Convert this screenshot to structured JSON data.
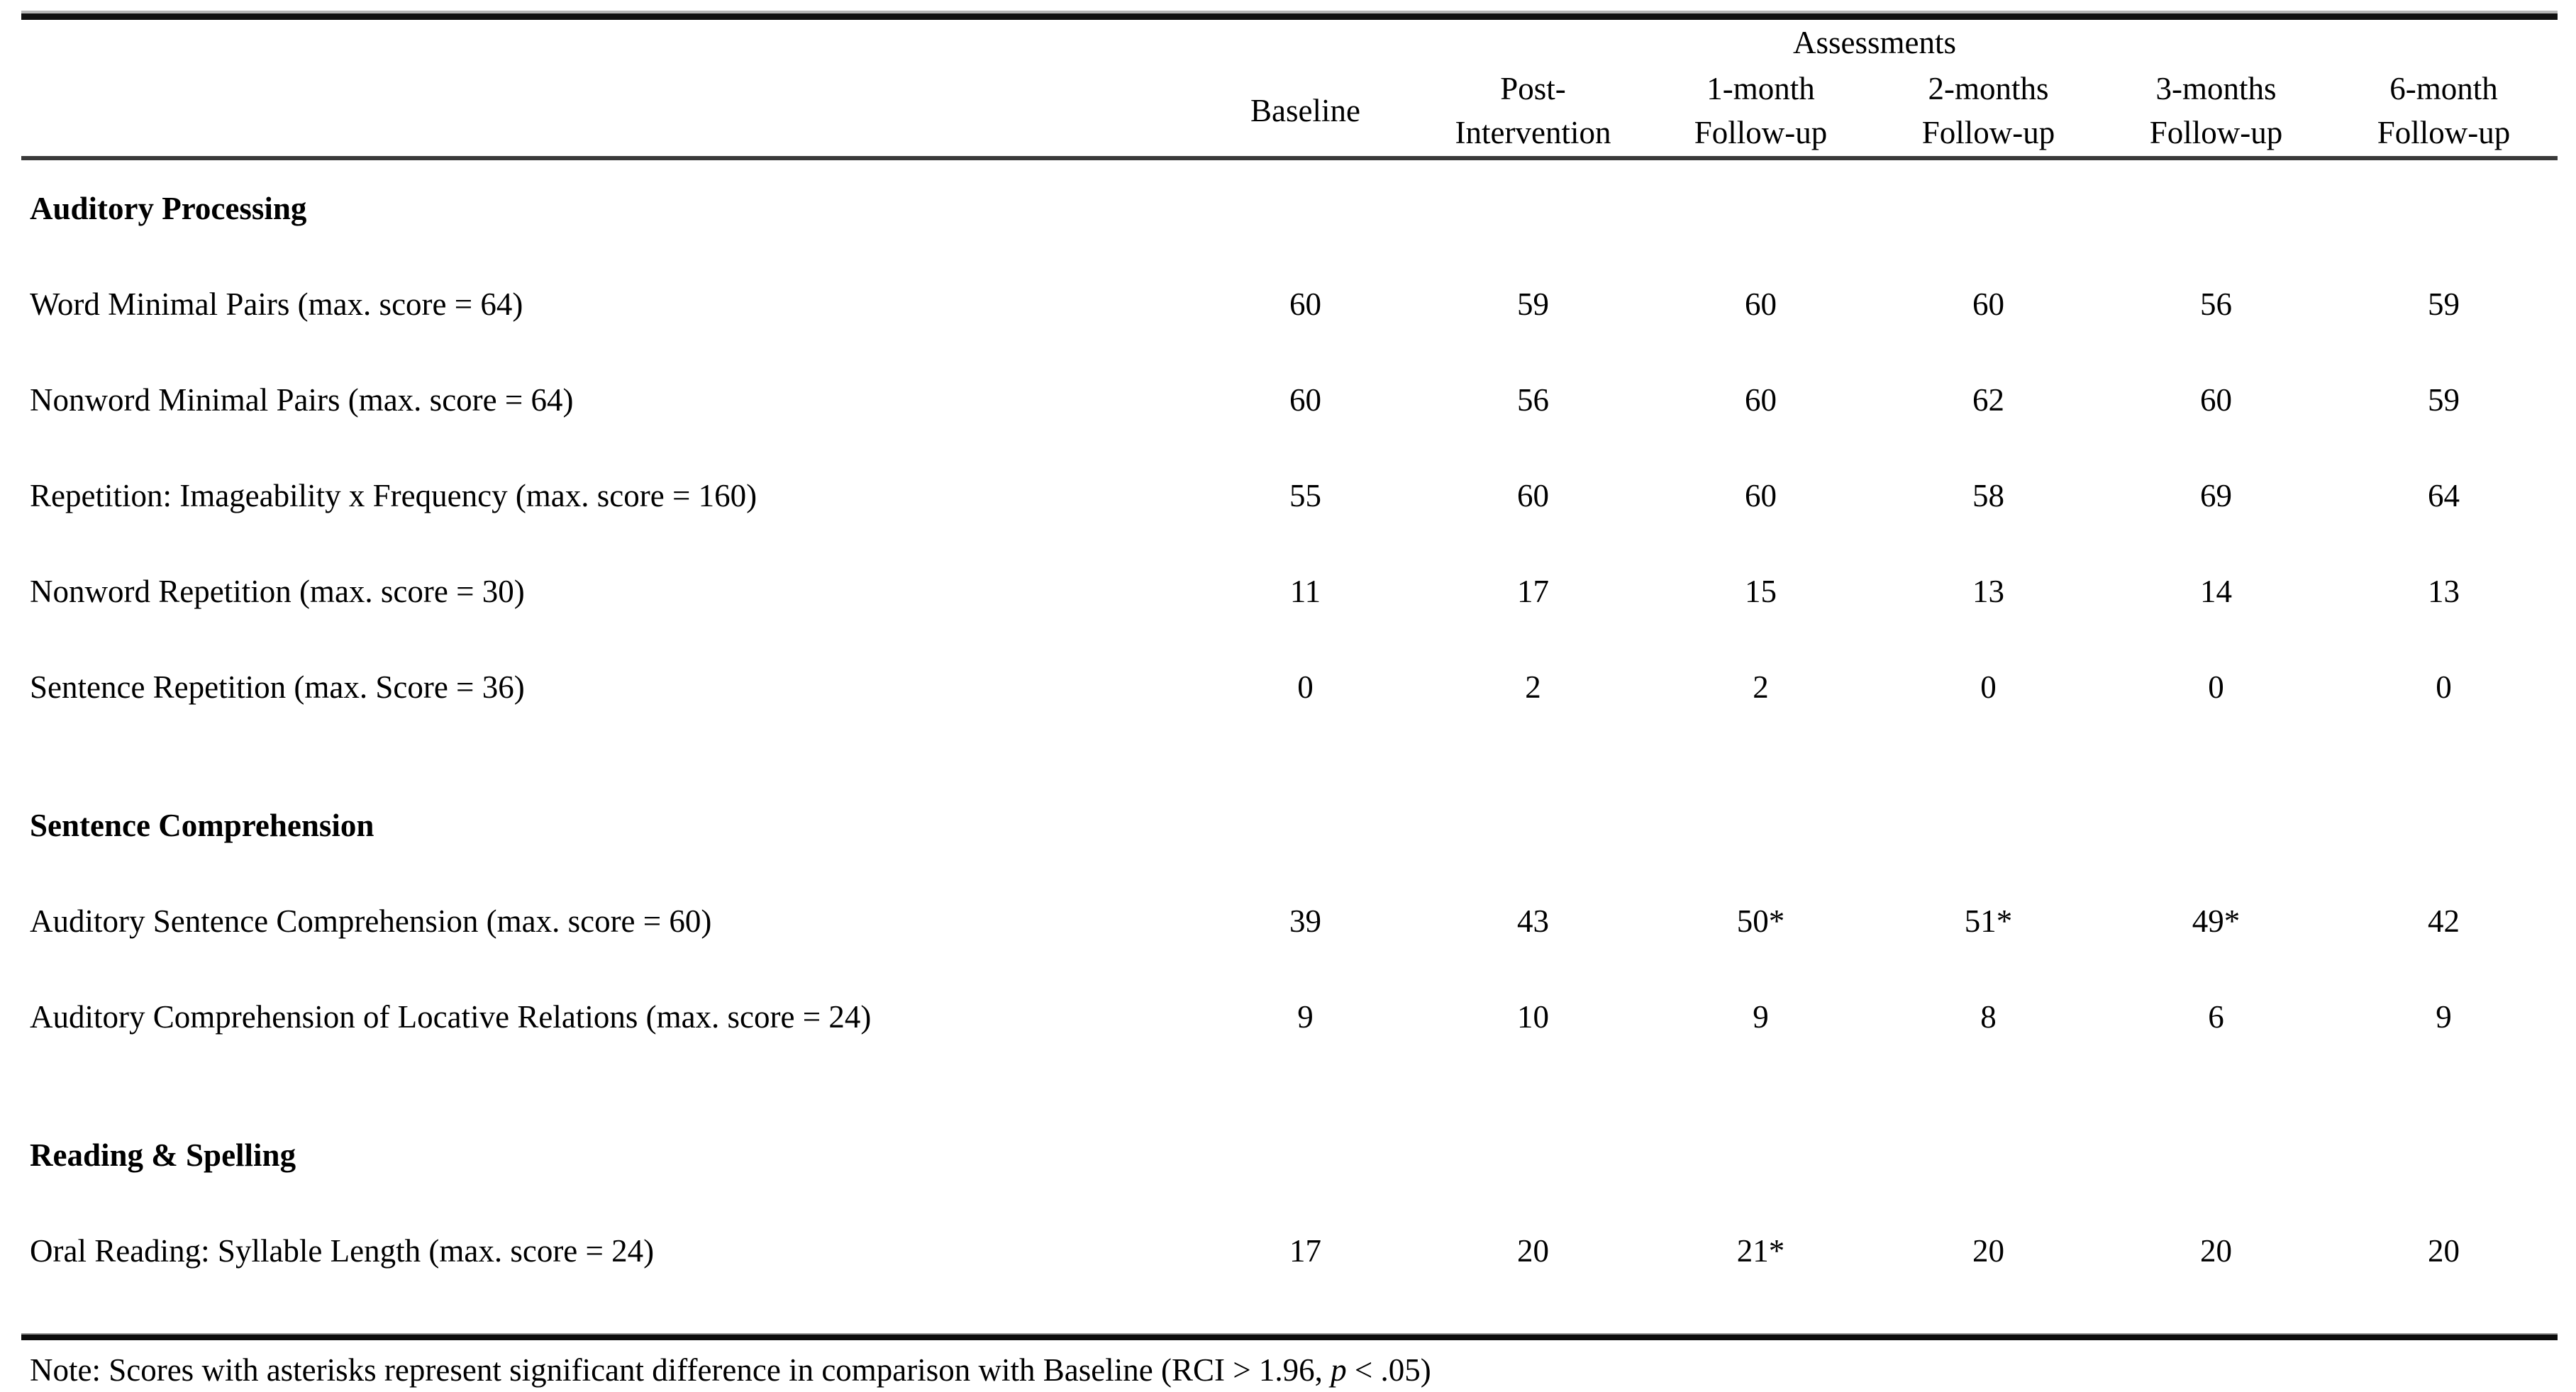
{
  "table": {
    "header": {
      "group_label": "Assessments",
      "columns": [
        {
          "line1": "Baseline",
          "line2": ""
        },
        {
          "line1": "Post-",
          "line2": "Intervention"
        },
        {
          "line1": "1-month",
          "line2": "Follow-up"
        },
        {
          "line1": "2-months",
          "line2": "Follow-up"
        },
        {
          "line1": "3-months",
          "line2": "Follow-up"
        },
        {
          "line1": "6-month",
          "line2": "Follow-up"
        }
      ]
    },
    "rows": [
      {
        "type": "section",
        "label": "Auditory Processing"
      },
      {
        "type": "item",
        "label": "Word Minimal Pairs (max. score = 64)",
        "values": [
          "60",
          "59",
          "60",
          "60",
          "56",
          "59"
        ]
      },
      {
        "type": "item",
        "label": "Nonword Minimal Pairs (max. score = 64)",
        "values": [
          "60",
          "56",
          "60",
          "62",
          "60",
          "59"
        ]
      },
      {
        "type": "item",
        "label": "Repetition: Imageability x Frequency (max. score = 160)",
        "values": [
          "55",
          "60",
          "60",
          "58",
          "69",
          "64"
        ]
      },
      {
        "type": "item",
        "label": "Nonword Repetition (max. score = 30)",
        "values": [
          "11",
          "17",
          "15",
          "13",
          "14",
          "13"
        ]
      },
      {
        "type": "item",
        "label": "Sentence Repetition (max. Score = 36)",
        "values": [
          "0",
          "2",
          "2",
          "0",
          "0",
          "0"
        ]
      },
      {
        "type": "section",
        "label": "Sentence Comprehension"
      },
      {
        "type": "item",
        "label": "Auditory Sentence Comprehension (max. score = 60)",
        "values": [
          "39",
          "43",
          "50*",
          "51*",
          "49*",
          "42"
        ]
      },
      {
        "type": "item",
        "label": "Auditory Comprehension of Locative Relations (max. score = 24)",
        "values": [
          "9",
          "10",
          "9",
          "8",
          "6",
          "9"
        ]
      },
      {
        "type": "section",
        "label": "Reading & Spelling"
      },
      {
        "type": "item",
        "label": "Oral Reading: Syllable Length (max. score = 24)",
        "values": [
          "17",
          "20",
          "21*",
          "20",
          "20",
          "20"
        ]
      }
    ]
  },
  "note": {
    "prefix": "Note: Scores with asterisks represent significant difference in comparison with Baseline (RCI > 1.96, ",
    "p": "p",
    "suffix": " < .05)"
  }
}
